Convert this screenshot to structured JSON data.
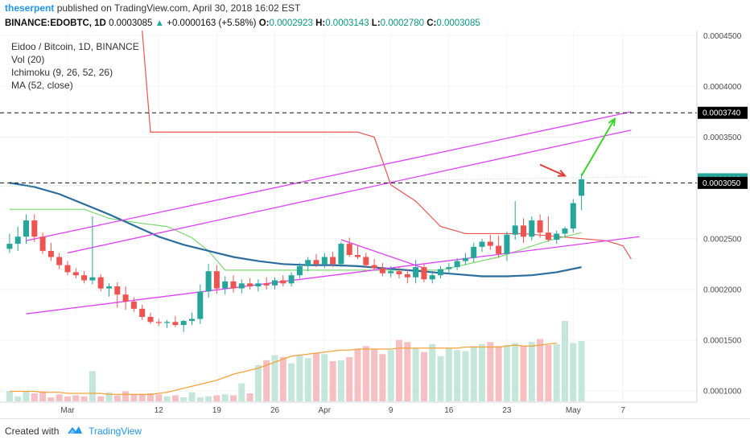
{
  "header": {
    "author": "theserpent",
    "published_text": "published on TradingView.com, April 30, 2018 16:02 EST"
  },
  "ticker": {
    "symbol": "BINANCE:EDOBTC, 1D",
    "price": "0.0003085",
    "change": "+0.0000163 (+5.58%)",
    "o_label": "O:",
    "o_value": "0.0002923",
    "h_label": "H:",
    "h_value": "0.0003143",
    "l_label": "L:",
    "l_value": "0.0002780",
    "c_label": "C:",
    "c_value": "0.0003085",
    "up_color": "#26a69a",
    "down_color": "#ef5350"
  },
  "legend": {
    "title": "Eidoo / Bitcoin, 1D, BINANCE",
    "vol": "Vol (20)",
    "ichimoku": "Ichimoku (9, 26, 52, 26)",
    "ma": "MA (52, close)"
  },
  "footer": {
    "created_with": "Created with",
    "brand": "TradingView"
  },
  "chart_data": {
    "type": "candlestick",
    "y_ticks": [
      "0.0004500",
      "0.0004000",
      "0.0003500",
      "0.0002500",
      "0.0002000",
      "0.0001500",
      "0.0001000"
    ],
    "ylim": [
      8.9e-05,
      0.000455
    ],
    "price_labels": [
      {
        "text": "0.0003740",
        "value": 0.000374,
        "style": "dark"
      },
      {
        "text": "0.0003085",
        "value": 0.0003085,
        "style": "green"
      },
      {
        "text": "0.0003050",
        "value": 0.000305,
        "style": "dark"
      }
    ],
    "x_ticks": [
      {
        "label": "Mar",
        "day": 0
      },
      {
        "label": "12",
        "day": 11
      },
      {
        "label": "19",
        "day": 18
      },
      {
        "label": "26",
        "day": 25
      },
      {
        "label": "Apr",
        "day": 31
      },
      {
        "label": "9",
        "day": 39
      },
      {
        "label": "16",
        "day": 46
      },
      {
        "label": "23",
        "day": 53
      },
      {
        "label": "May",
        "day": 61
      },
      {
        "label": "7",
        "day": 67
      }
    ],
    "candles": [
      {
        "day": -7,
        "o": 0.00024,
        "h": 0.000255,
        "l": 0.000236,
        "c": 0.000245
      },
      {
        "day": -6,
        "o": 0.000245,
        "h": 0.000262,
        "l": 0.000238,
        "c": 0.000252
      },
      {
        "day": -5,
        "o": 0.000252,
        "h": 0.000274,
        "l": 0.000245,
        "c": 0.000268
      },
      {
        "day": -4,
        "o": 0.000268,
        "h": 0.000274,
        "l": 0.000247,
        "c": 0.000252
      },
      {
        "day": -3,
        "o": 0.000252,
        "h": 0.000256,
        "l": 0.000235,
        "c": 0.000238
      },
      {
        "day": -2,
        "o": 0.000238,
        "h": 0.000246,
        "l": 0.000228,
        "c": 0.000232
      },
      {
        "day": -1,
        "o": 0.000232,
        "h": 0.000236,
        "l": 0.00022,
        "c": 0.000224
      },
      {
        "day": 0,
        "o": 0.000224,
        "h": 0.000228,
        "l": 0.000214,
        "c": 0.000217
      },
      {
        "day": 1,
        "o": 0.000217,
        "h": 0.000221,
        "l": 0.000211,
        "c": 0.000214
      },
      {
        "day": 2,
        "o": 0.000214,
        "h": 0.000218,
        "l": 0.000206,
        "c": 0.000209
      },
      {
        "day": 3,
        "o": 0.000209,
        "h": 0.000272,
        "l": 0.000205,
        "c": 0.000212
      },
      {
        "day": 4,
        "o": 0.000212,
        "h": 0.000215,
        "l": 0.000198,
        "c": 0.000201
      },
      {
        "day": 5,
        "o": 0.000201,
        "h": 0.000206,
        "l": 0.000193,
        "c": 0.000203
      },
      {
        "day": 6,
        "o": 0.000203,
        "h": 0.000207,
        "l": 0.000182,
        "c": 0.000195
      },
      {
        "day": 7,
        "o": 0.000195,
        "h": 0.000203,
        "l": 0.00018,
        "c": 0.000188
      },
      {
        "day": 8,
        "o": 0.000188,
        "h": 0.000192,
        "l": 0.000178,
        "c": 0.000181
      },
      {
        "day": 9,
        "o": 0.000181,
        "h": 0.000185,
        "l": 0.00017,
        "c": 0.000173
      },
      {
        "day": 10,
        "o": 0.000173,
        "h": 0.000177,
        "l": 0.000166,
        "c": 0.000168
      },
      {
        "day": 11,
        "o": 0.000168,
        "h": 0.000171,
        "l": 0.000164,
        "c": 0.000167
      },
      {
        "day": 12,
        "o": 0.000167,
        "h": 0.00017,
        "l": 0.000162,
        "c": 0.000168
      },
      {
        "day": 13,
        "o": 0.000168,
        "h": 0.000174,
        "l": 0.000163,
        "c": 0.000165
      },
      {
        "day": 14,
        "o": 0.000165,
        "h": 0.00017,
        "l": 0.000158,
        "c": 0.000169
      },
      {
        "day": 15,
        "o": 0.000169,
        "h": 0.000177,
        "l": 0.000165,
        "c": 0.000171
      },
      {
        "day": 16,
        "o": 0.000171,
        "h": 0.000205,
        "l": 0.000166,
        "c": 0.000198
      },
      {
        "day": 17,
        "o": 0.000198,
        "h": 0.000225,
        "l": 0.000192,
        "c": 0.000218
      },
      {
        "day": 18,
        "o": 0.000218,
        "h": 0.000224,
        "l": 0.000196,
        "c": 0.000201
      },
      {
        "day": 19,
        "o": 0.000201,
        "h": 0.000213,
        "l": 0.000195,
        "c": 0.000208
      },
      {
        "day": 20,
        "o": 0.000208,
        "h": 0.000214,
        "l": 0.000197,
        "c": 0.000201
      },
      {
        "day": 21,
        "o": 0.000201,
        "h": 0.00021,
        "l": 0.000196,
        "c": 0.000206
      },
      {
        "day": 22,
        "o": 0.000206,
        "h": 0.000211,
        "l": 0.0002,
        "c": 0.000203
      },
      {
        "day": 23,
        "o": 0.000203,
        "h": 0.00021,
        "l": 0.000198,
        "c": 0.000206
      },
      {
        "day": 24,
        "o": 0.000206,
        "h": 0.000212,
        "l": 0.0002,
        "c": 0.000204
      },
      {
        "day": 25,
        "o": 0.000204,
        "h": 0.000212,
        "l": 0.0002,
        "c": 0.000209
      },
      {
        "day": 26,
        "o": 0.000209,
        "h": 0.000214,
        "l": 0.000203,
        "c": 0.000206
      },
      {
        "day": 27,
        "o": 0.000206,
        "h": 0.000217,
        "l": 0.000203,
        "c": 0.000214
      },
      {
        "day": 28,
        "o": 0.000214,
        "h": 0.000226,
        "l": 0.000211,
        "c": 0.000223
      },
      {
        "day": 29,
        "o": 0.000223,
        "h": 0.000232,
        "l": 0.000218,
        "c": 0.000229
      },
      {
        "day": 30,
        "o": 0.000229,
        "h": 0.000235,
        "l": 0.000222,
        "c": 0.000225
      },
      {
        "day": 31,
        "o": 0.000225,
        "h": 0.000236,
        "l": 0.000221,
        "c": 0.000232
      },
      {
        "day": 32,
        "o": 0.000232,
        "h": 0.000237,
        "l": 0.000222,
        "c": 0.000225
      },
      {
        "day": 33,
        "o": 0.000225,
        "h": 0.000247,
        "l": 0.000222,
        "c": 0.000245
      },
      {
        "day": 34,
        "o": 0.000245,
        "h": 0.000251,
        "l": 0.000232,
        "c": 0.000234
      },
      {
        "day": 35,
        "o": 0.000234,
        "h": 0.000244,
        "l": 0.00023,
        "c": 0.000232
      },
      {
        "day": 36,
        "o": 0.000232,
        "h": 0.000236,
        "l": 0.000222,
        "c": 0.000224
      },
      {
        "day": 37,
        "o": 0.000224,
        "h": 0.00023,
        "l": 0.000219,
        "c": 0.000221
      },
      {
        "day": 38,
        "o": 0.000221,
        "h": 0.000226,
        "l": 0.000213,
        "c": 0.000216
      },
      {
        "day": 39,
        "o": 0.000216,
        "h": 0.000223,
        "l": 0.000212,
        "c": 0.000218
      },
      {
        "day": 40,
        "o": 0.000218,
        "h": 0.000223,
        "l": 0.000211,
        "c": 0.000215
      },
      {
        "day": 41,
        "o": 0.000215,
        "h": 0.00022,
        "l": 0.000206,
        "c": 0.000212
      },
      {
        "day": 42,
        "o": 0.000212,
        "h": 0.000229,
        "l": 0.000206,
        "c": 0.000222
      },
      {
        "day": 43,
        "o": 0.000222,
        "h": 0.000225,
        "l": 0.000207,
        "c": 0.00021
      },
      {
        "day": 44,
        "o": 0.00021,
        "h": 0.000216,
        "l": 0.000206,
        "c": 0.000214
      },
      {
        "day": 45,
        "o": 0.000214,
        "h": 0.000223,
        "l": 0.000211,
        "c": 0.00022
      },
      {
        "day": 46,
        "o": 0.00022,
        "h": 0.000226,
        "l": 0.000215,
        "c": 0.000222
      },
      {
        "day": 47,
        "o": 0.000222,
        "h": 0.000231,
        "l": 0.000219,
        "c": 0.000228
      },
      {
        "day": 48,
        "o": 0.000228,
        "h": 0.000236,
        "l": 0.000224,
        "c": 0.000231
      },
      {
        "day": 49,
        "o": 0.000231,
        "h": 0.000246,
        "l": 0.000227,
        "c": 0.000242
      },
      {
        "day": 50,
        "o": 0.000242,
        "h": 0.00025,
        "l": 0.000237,
        "c": 0.000247
      },
      {
        "day": 51,
        "o": 0.000247,
        "h": 0.000254,
        "l": 0.000239,
        "c": 0.000243
      },
      {
        "day": 52,
        "o": 0.000243,
        "h": 0.000253,
        "l": 0.000231,
        "c": 0.000235
      },
      {
        "day": 53,
        "o": 0.000235,
        "h": 0.000257,
        "l": 0.000228,
        "c": 0.000254
      },
      {
        "day": 54,
        "o": 0.000254,
        "h": 0.000287,
        "l": 0.000249,
        "c": 0.000263
      },
      {
        "day": 55,
        "o": 0.000263,
        "h": 0.00027,
        "l": 0.000246,
        "c": 0.000252
      },
      {
        "day": 56,
        "o": 0.000252,
        "h": 0.000272,
        "l": 0.000248,
        "c": 0.000268
      },
      {
        "day": 57,
        "o": 0.000268,
        "h": 0.000274,
        "l": 0.000251,
        "c": 0.000256
      },
      {
        "day": 58,
        "o": 0.000256,
        "h": 0.000272,
        "l": 0.000247,
        "c": 0.000249
      },
      {
        "day": 59,
        "o": 0.000249,
        "h": 0.000258,
        "l": 0.000245,
        "c": 0.000255
      },
      {
        "day": 60,
        "o": 0.000255,
        "h": 0.000262,
        "l": 0.000251,
        "c": 0.00026
      },
      {
        "day": 61,
        "o": 0.00026,
        "h": 0.000289,
        "l": 0.000256,
        "c": 0.000285
      },
      {
        "day": 62,
        "o": 0.0002923,
        "h": 0.0003143,
        "l": 0.000278,
        "c": 0.0003085
      }
    ],
    "volume_rel": [
      0.1,
      0.05,
      0.1,
      0.08,
      0.1,
      0.04,
      0.07,
      0.05,
      0.06,
      0.05,
      0.3,
      0.05,
      0.09,
      0.06,
      0.1,
      0.07,
      0.07,
      0.08,
      0.07,
      0.05,
      0.06,
      0.04,
      0.09,
      0.04,
      0.05,
      0.06,
      0.07,
      0.06,
      0.18,
      0.08,
      0.36,
      0.41,
      0.46,
      0.44,
      0.38,
      0.46,
      0.43,
      0.48,
      0.47,
      0.4,
      0.41,
      0.44,
      0.52,
      0.55,
      0.52,
      0.47,
      0.51,
      0.61,
      0.59,
      0.53,
      0.49,
      0.57,
      0.45,
      0.53,
      0.51,
      0.5,
      0.55,
      0.57,
      0.59,
      0.55,
      0.56,
      0.58,
      0.55,
      0.59,
      0.62,
      0.56,
      0.57,
      0.8,
      0.58,
      0.6,
      0.57,
      0.71,
      0.54
    ],
    "vol_ma_rel": [
      0.1,
      0.1,
      0.1,
      0.1,
      0.09,
      0.09,
      0.09,
      0.08,
      0.08,
      0.08,
      0.08,
      0.08,
      0.07,
      0.07,
      0.07,
      0.07,
      0.07,
      0.07,
      0.08,
      0.09,
      0.11,
      0.13,
      0.15,
      0.17,
      0.19,
      0.21,
      0.24,
      0.27,
      0.29,
      0.31,
      0.33,
      0.36,
      0.39,
      0.42,
      0.45,
      0.46,
      0.47,
      0.48,
      0.49,
      0.5,
      0.51,
      0.51,
      0.52,
      0.52,
      0.52,
      0.52,
      0.52,
      0.53,
      0.53,
      0.53,
      0.53,
      0.53,
      0.53,
      0.53,
      0.53,
      0.54,
      0.54,
      0.54,
      0.54,
      0.54,
      0.55,
      0.56,
      0.55,
      0.55,
      0.56,
      0.57,
      0.58
    ],
    "ma52": [
      [
        -7,
        0.000305
      ],
      [
        -4,
        0.000301
      ],
      [
        -1,
        0.000294
      ],
      [
        2,
        0.000284
      ],
      [
        5,
        0.000274
      ],
      [
        8,
        0.000263
      ],
      [
        11,
        0.000252
      ],
      [
        14,
        0.000244
      ],
      [
        17,
        0.000238
      ],
      [
        20,
        0.000232
      ],
      [
        23,
        0.000228
      ],
      [
        26,
        0.000225
      ],
      [
        29,
        0.000224
      ],
      [
        32,
        0.000224
      ],
      [
        35,
        0.000223
      ],
      [
        38,
        0.000221
      ],
      [
        41,
        0.000219
      ],
      [
        44,
        0.000217
      ],
      [
        47,
        0.000215
      ],
      [
        50,
        0.000213
      ],
      [
        53,
        0.000213
      ],
      [
        56,
        0.000214
      ],
      [
        59,
        0.000217
      ],
      [
        62,
        0.000222
      ]
    ],
    "ichimoku_lead": [
      [
        -7,
        0.000279
      ],
      [
        2,
        0.000279
      ],
      [
        5,
        0.00027
      ],
      [
        9,
        0.000265
      ],
      [
        12,
        0.000262
      ],
      [
        15,
        0.000251
      ],
      [
        17,
        0.000238
      ],
      [
        19,
        0.000219
      ],
      [
        34,
        0.000219
      ],
      [
        45,
        0.000219
      ],
      [
        52,
        0.000232
      ],
      [
        58,
        0.000248
      ],
      [
        62,
        0.000256
      ]
    ],
    "ichimoku_red": [
      [
        9,
        0.000455
      ],
      [
        10,
        0.000355
      ],
      [
        35,
        0.000355
      ],
      [
        37,
        0.00035
      ],
      [
        39,
        0.000303
      ],
      [
        42,
        0.000287
      ],
      [
        45,
        0.000262
      ],
      [
        48,
        0.000255
      ],
      [
        55,
        0.000255
      ],
      [
        65,
        0.000248
      ],
      [
        67,
        0.000243
      ],
      [
        68,
        0.00023
      ]
    ],
    "lines": {
      "upper_channel": [
        [
          -5,
          0.000248
        ],
        [
          68,
          0.000375
        ]
      ],
      "mid_channel": [
        [
          0,
          0.000236
        ],
        [
          68,
          0.000357
        ]
      ],
      "lower_channel": [
        [
          -5,
          0.000176
        ],
        [
          69,
          0.000252
        ]
      ],
      "bear_trend": [
        [
          33,
          0.000249
        ],
        [
          43,
          0.000221
        ]
      ],
      "upper_green": [
        [
          -12,
          0.000301
        ],
        [
          70,
          0.000311
        ]
      ]
    },
    "arrows": {
      "red_from": [
        57,
        0.000323
      ],
      "red_to": [
        60,
        0.000312
      ],
      "green_from": [
        62,
        0.000312
      ],
      "green_to": [
        66,
        0.000368
      ]
    },
    "colors": {
      "up": "#26a69a",
      "down": "#ef5350",
      "vol_up": "#bfe3d6",
      "vol_down": "#f5b8bb",
      "vol_ma": "#f6a23a",
      "ma52": "#2a6d9e",
      "ichimoku_lead": "#7cd86f",
      "ichimoku_red": "#ef5350",
      "channel": "#e040fb",
      "arrow_red": "#e53935",
      "arrow_green": "#39d42a"
    }
  }
}
